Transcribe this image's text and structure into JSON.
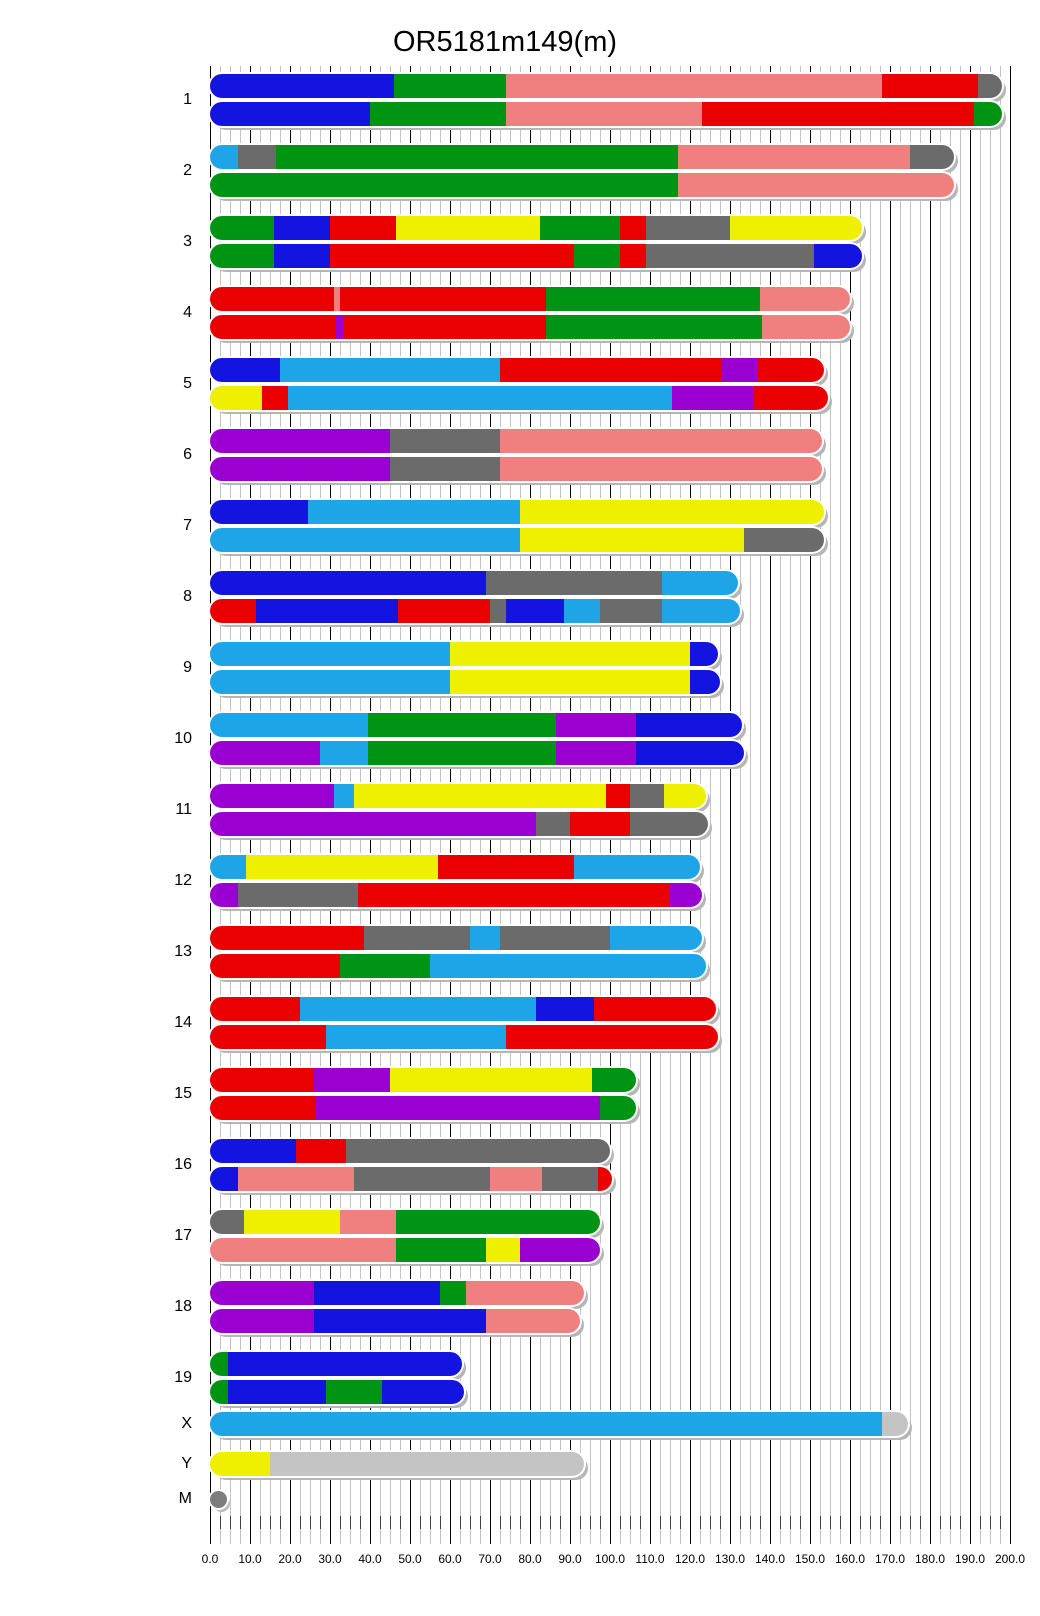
{
  "title": "OR5181m149(m)",
  "colors": {
    "blue": "#1414e1",
    "green": "#009414",
    "pink": "#f08080",
    "red": "#ea0000",
    "gray": "#6b6b6b",
    "cyan": "#1ea5e8",
    "yellow": "#efef00",
    "purple": "#9b00d3",
    "silver": "#c4c4c4",
    "mgray": "#7d7d7d"
  },
  "axis": {
    "min": 0,
    "max": 200,
    "minor_step": 2.5,
    "major_step": 10,
    "tick_labels": [
      "0.0",
      "10.0",
      "20.0",
      "30.0",
      "40.0",
      "50.0",
      "60.0",
      "70.0",
      "80.0",
      "90.0",
      "100.0",
      "110.0",
      "120.0",
      "130.0",
      "140.0",
      "150.0",
      "160.0",
      "170.0",
      "180.0",
      "190.0",
      "200.0"
    ]
  },
  "chart_data": {
    "type": "chromosome-segment-bars",
    "title": "OR5181m149(m)",
    "x_range": [
      0,
      200
    ],
    "grid": "on",
    "chromosomes": [
      {
        "name": "1",
        "bars": [
          [
            [
              0,
              46,
              "blue"
            ],
            [
              46,
              74,
              "green"
            ],
            [
              74,
              168,
              "pink"
            ],
            [
              168,
              192,
              "red"
            ],
            [
              192,
              198,
              "gray"
            ]
          ],
          [
            [
              0,
              40,
              "blue"
            ],
            [
              40,
              74,
              "green"
            ],
            [
              74,
              123,
              "pink"
            ],
            [
              123,
              191,
              "red"
            ],
            [
              191,
              198,
              "green"
            ]
          ]
        ]
      },
      {
        "name": "2",
        "bars": [
          [
            [
              0,
              7,
              "cyan"
            ],
            [
              7,
              16.5,
              "gray"
            ],
            [
              16.5,
              117,
              "green"
            ],
            [
              117,
              175,
              "pink"
            ],
            [
              175,
              186,
              "gray"
            ]
          ],
          [
            [
              0,
              117,
              "green"
            ],
            [
              117,
              186,
              "pink"
            ]
          ]
        ]
      },
      {
        "name": "3",
        "bars": [
          [
            [
              0,
              16,
              "green"
            ],
            [
              16,
              30,
              "blue"
            ],
            [
              30,
              46.5,
              "red"
            ],
            [
              46.5,
              82.5,
              "yellow"
            ],
            [
              82.5,
              102.5,
              "green"
            ],
            [
              102.5,
              109,
              "red"
            ],
            [
              109,
              130,
              "gray"
            ],
            [
              130,
              163,
              "yellow"
            ]
          ],
          [
            [
              0,
              16,
              "green"
            ],
            [
              16,
              30,
              "blue"
            ],
            [
              30,
              91,
              "red"
            ],
            [
              91,
              102.5,
              "green"
            ],
            [
              102.5,
              109,
              "red"
            ],
            [
              109,
              151,
              "gray"
            ],
            [
              151,
              163,
              "blue"
            ]
          ]
        ]
      },
      {
        "name": "4",
        "bars": [
          [
            [
              0,
              31,
              "red"
            ],
            [
              31,
              32.5,
              "pink"
            ],
            [
              32.5,
              84,
              "red"
            ],
            [
              84,
              137.5,
              "green"
            ],
            [
              137.5,
              160,
              "pink"
            ]
          ],
          [
            [
              0,
              31.5,
              "red"
            ],
            [
              31.5,
              33.5,
              "purple"
            ],
            [
              33.5,
              84,
              "red"
            ],
            [
              84,
              138,
              "green"
            ],
            [
              138,
              160,
              "pink"
            ]
          ]
        ]
      },
      {
        "name": "5",
        "bars": [
          [
            [
              0,
              17.5,
              "blue"
            ],
            [
              17.5,
              72.5,
              "cyan"
            ],
            [
              72.5,
              128,
              "red"
            ],
            [
              128,
              137,
              "purple"
            ],
            [
              137,
              153.5,
              "red"
            ]
          ],
          [
            [
              0,
              13,
              "yellow"
            ],
            [
              13,
              19.5,
              "red"
            ],
            [
              19.5,
              115.5,
              "cyan"
            ],
            [
              115.5,
              136,
              "purple"
            ],
            [
              136,
              154.5,
              "red"
            ]
          ]
        ]
      },
      {
        "name": "6",
        "bars": [
          [
            [
              0,
              45,
              "purple"
            ],
            [
              45,
              72.5,
              "gray"
            ],
            [
              72.5,
              153,
              "pink"
            ]
          ],
          [
            [
              0,
              45,
              "purple"
            ],
            [
              45,
              72.5,
              "gray"
            ],
            [
              72.5,
              153,
              "pink"
            ]
          ]
        ]
      },
      {
        "name": "7",
        "bars": [
          [
            [
              0,
              24.5,
              "blue"
            ],
            [
              24.5,
              77.5,
              "cyan"
            ],
            [
              77.5,
              153.5,
              "yellow"
            ]
          ],
          [
            [
              0,
              77.5,
              "cyan"
            ],
            [
              77.5,
              133.5,
              "yellow"
            ],
            [
              133.5,
              153.5,
              "gray"
            ]
          ]
        ]
      },
      {
        "name": "8",
        "bars": [
          [
            [
              0,
              69,
              "blue"
            ],
            [
              69,
              113,
              "gray"
            ],
            [
              113,
              132,
              "cyan"
            ]
          ],
          [
            [
              0,
              11.5,
              "red"
            ],
            [
              11.5,
              47,
              "blue"
            ],
            [
              47,
              70,
              "red"
            ],
            [
              70,
              74,
              "gray"
            ],
            [
              74,
              88.5,
              "blue"
            ],
            [
              88.5,
              97.5,
              "cyan"
            ],
            [
              97.5,
              113,
              "gray"
            ],
            [
              113,
              132.5,
              "cyan"
            ]
          ]
        ]
      },
      {
        "name": "9",
        "bars": [
          [
            [
              0,
              60,
              "cyan"
            ],
            [
              60,
              120,
              "yellow"
            ],
            [
              120,
              127,
              "blue"
            ]
          ],
          [
            [
              0,
              60,
              "cyan"
            ],
            [
              60,
              120,
              "yellow"
            ],
            [
              120,
              127.5,
              "blue"
            ]
          ]
        ]
      },
      {
        "name": "10",
        "bars": [
          [
            [
              0,
              39.5,
              "cyan"
            ],
            [
              39.5,
              86.5,
              "green"
            ],
            [
              86.5,
              106.5,
              "purple"
            ],
            [
              106.5,
              133,
              "blue"
            ]
          ],
          [
            [
              0,
              27.5,
              "purple"
            ],
            [
              27.5,
              39.5,
              "cyan"
            ],
            [
              39.5,
              86.5,
              "green"
            ],
            [
              86.5,
              106.5,
              "purple"
            ],
            [
              106.5,
              133.5,
              "blue"
            ]
          ]
        ]
      },
      {
        "name": "11",
        "bars": [
          [
            [
              0,
              31,
              "purple"
            ],
            [
              31,
              36,
              "cyan"
            ],
            [
              36,
              99,
              "yellow"
            ],
            [
              99,
              105,
              "red"
            ],
            [
              105,
              113.5,
              "gray"
            ],
            [
              113.5,
              124,
              "yellow"
            ]
          ],
          [
            [
              0,
              81.5,
              "purple"
            ],
            [
              81.5,
              90,
              "gray"
            ],
            [
              90,
              105,
              "red"
            ],
            [
              105,
              124.5,
              "gray"
            ]
          ]
        ]
      },
      {
        "name": "12",
        "bars": [
          [
            [
              0,
              9,
              "cyan"
            ],
            [
              9,
              57,
              "yellow"
            ],
            [
              57,
              91,
              "red"
            ],
            [
              91,
              122.5,
              "cyan"
            ]
          ],
          [
            [
              0,
              7,
              "purple"
            ],
            [
              7,
              37,
              "gray"
            ],
            [
              37,
              115,
              "red"
            ],
            [
              115,
              123,
              "purple"
            ]
          ]
        ]
      },
      {
        "name": "13",
        "bars": [
          [
            [
              0,
              38.5,
              "red"
            ],
            [
              38.5,
              65,
              "gray"
            ],
            [
              65,
              72.5,
              "cyan"
            ],
            [
              72.5,
              100,
              "gray"
            ],
            [
              100,
              123,
              "cyan"
            ]
          ],
          [
            [
              0,
              32.5,
              "red"
            ],
            [
              32.5,
              55,
              "green"
            ],
            [
              55,
              124,
              "cyan"
            ]
          ]
        ]
      },
      {
        "name": "14",
        "bars": [
          [
            [
              0,
              22.5,
              "red"
            ],
            [
              22.5,
              81.5,
              "cyan"
            ],
            [
              81.5,
              96,
              "blue"
            ],
            [
              96,
              126.5,
              "red"
            ]
          ],
          [
            [
              0,
              29,
              "red"
            ],
            [
              29,
              74,
              "cyan"
            ],
            [
              74,
              127,
              "red"
            ]
          ]
        ]
      },
      {
        "name": "15",
        "bars": [
          [
            [
              0,
              26,
              "red"
            ],
            [
              26,
              45,
              "purple"
            ],
            [
              45,
              95.5,
              "yellow"
            ],
            [
              95.5,
              106.5,
              "green"
            ]
          ],
          [
            [
              0,
              26.5,
              "red"
            ],
            [
              26.5,
              97.5,
              "purple"
            ],
            [
              97.5,
              106.5,
              "green"
            ]
          ]
        ]
      },
      {
        "name": "16",
        "bars": [
          [
            [
              0,
              21.5,
              "blue"
            ],
            [
              21.5,
              34,
              "red"
            ],
            [
              34,
              100,
              "gray"
            ]
          ],
          [
            [
              0,
              7,
              "blue"
            ],
            [
              7,
              36,
              "pink"
            ],
            [
              36,
              70,
              "gray"
            ],
            [
              70,
              83,
              "pink"
            ],
            [
              83,
              97,
              "gray"
            ],
            [
              97,
              100.5,
              "red"
            ]
          ]
        ]
      },
      {
        "name": "17",
        "bars": [
          [
            [
              0,
              8.5,
              "gray"
            ],
            [
              8.5,
              32.5,
              "yellow"
            ],
            [
              32.5,
              46.5,
              "pink"
            ],
            [
              46.5,
              97.5,
              "green"
            ]
          ],
          [
            [
              0,
              46.5,
              "pink"
            ],
            [
              46.5,
              69,
              "green"
            ],
            [
              69,
              77.5,
              "yellow"
            ],
            [
              77.5,
              97.5,
              "purple"
            ]
          ]
        ]
      },
      {
        "name": "18",
        "bars": [
          [
            [
              0,
              26,
              "purple"
            ],
            [
              26,
              57.5,
              "blue"
            ],
            [
              57.5,
              64,
              "green"
            ],
            [
              64,
              93.5,
              "pink"
            ]
          ],
          [
            [
              0,
              26,
              "purple"
            ],
            [
              26,
              69,
              "blue"
            ],
            [
              69,
              92.5,
              "pink"
            ]
          ]
        ]
      },
      {
        "name": "19",
        "bars": [
          [
            [
              0,
              4.5,
              "green"
            ],
            [
              4.5,
              63,
              "blue"
            ]
          ],
          [
            [
              0,
              4.5,
              "green"
            ],
            [
              4.5,
              29,
              "blue"
            ],
            [
              29,
              43,
              "green"
            ],
            [
              43,
              63.5,
              "blue"
            ]
          ]
        ]
      },
      {
        "name": "X",
        "bars": [
          [
            [
              0,
              168,
              "cyan"
            ],
            [
              168,
              174.5,
              "silver"
            ]
          ]
        ]
      },
      {
        "name": "Y",
        "bars": [
          [
            [
              0,
              15,
              "yellow"
            ],
            [
              15,
              93.5,
              "silver"
            ]
          ]
        ]
      },
      {
        "name": "M",
        "shape": "circle",
        "bars": [
          [
            [
              0,
              2.5,
              "mgray"
            ]
          ]
        ]
      }
    ]
  }
}
